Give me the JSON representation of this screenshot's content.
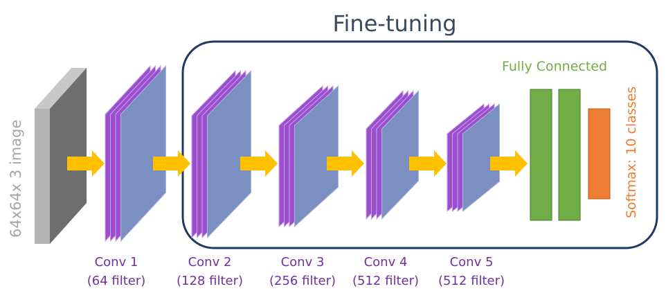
{
  "title": "Fine-tuning",
  "input_label": "64x64x 3 image",
  "fc_label": "Fully Connected",
  "softmax_label": "Softmax: 10 classes",
  "conv_layers": [
    {
      "name": "Conv 1",
      "filters": "(64 filter)"
    },
    {
      "name": "Conv 2",
      "filters": "(128 filter)"
    },
    {
      "name": "Conv 3",
      "filters": "(256 filter)"
    },
    {
      "name": "Conv 4",
      "filters": "(512 filter)"
    },
    {
      "name": "Conv 5",
      "filters": "(512 filter)"
    }
  ],
  "colors": {
    "title": "#3a4a5e",
    "frame": "#1f3864",
    "conv_label": "#7030a0",
    "fc": "#70ad47",
    "softmax": "#ed7d31",
    "arrow": "#ffc000",
    "input_label": "#a6a6a6",
    "feature_map_face": "#7b8fc0",
    "feature_map_back": "#9b4fcf"
  }
}
